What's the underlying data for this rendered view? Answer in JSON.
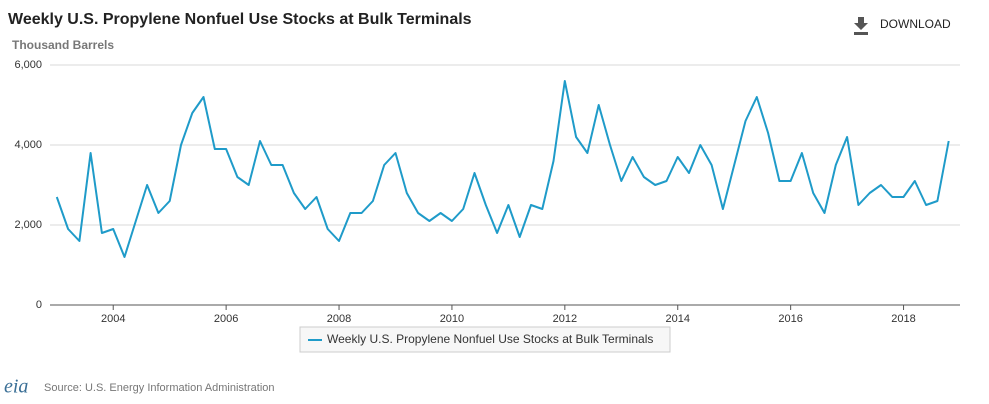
{
  "chart_data": {
    "type": "line",
    "title": "Weekly U.S. Propylene Nonfuel Use Stocks at Bulk Terminals",
    "y_label": "Thousand Barrels",
    "download": "DOWNLOAD",
    "source": "Source: U.S. Energy Information Administration",
    "logo": "eia",
    "x": [
      2003.0,
      2003.2,
      2003.4,
      2003.6,
      2003.8,
      2004.0,
      2004.2,
      2004.4,
      2004.6,
      2004.8,
      2005.0,
      2005.2,
      2005.4,
      2005.6,
      2005.8,
      2006.0,
      2006.2,
      2006.4,
      2006.6,
      2006.8,
      2007.0,
      2007.2,
      2007.4,
      2007.6,
      2007.8,
      2008.0,
      2008.2,
      2008.4,
      2008.6,
      2008.8,
      2009.0,
      2009.2,
      2009.4,
      2009.6,
      2009.8,
      2010.0,
      2010.2,
      2010.4,
      2010.6,
      2010.8,
      2011.0,
      2011.2,
      2011.4,
      2011.6,
      2011.8,
      2012.0,
      2012.2,
      2012.4,
      2012.6,
      2012.8,
      2013.0,
      2013.2,
      2013.4,
      2013.6,
      2013.8,
      2014.0,
      2014.2,
      2014.4,
      2014.6,
      2014.8,
      2015.0,
      2015.2,
      2015.4,
      2015.6,
      2015.8,
      2016.0,
      2016.2,
      2016.4,
      2016.6,
      2016.8,
      2017.0,
      2017.2,
      2017.4,
      2017.6,
      2017.8,
      2018.0,
      2018.2,
      2018.4,
      2018.6,
      2018.8
    ],
    "series": [
      {
        "name": "Weekly U.S. Propylene Nonfuel Use Stocks at Bulk Terminals",
        "color": "#1f9bc9",
        "values": [
          2700,
          1900,
          1600,
          3800,
          1800,
          1900,
          1200,
          2100,
          3000,
          2300,
          2600,
          4000,
          4800,
          5200,
          3900,
          3900,
          3200,
          3000,
          4100,
          3500,
          3500,
          2800,
          2400,
          2700,
          1900,
          1600,
          2300,
          2300,
          2600,
          3500,
          3800,
          2800,
          2300,
          2100,
          2300,
          2100,
          2400,
          3300,
          2500,
          1800,
          2500,
          1700,
          2500,
          2400,
          3600,
          5600,
          4200,
          3800,
          5000,
          4000,
          3100,
          3700,
          3200,
          3000,
          3100,
          3700,
          3300,
          4000,
          3500,
          2400,
          3500,
          4600,
          5200,
          4300,
          3100,
          3100,
          3800,
          2800,
          2300,
          3500,
          4200,
          2500,
          2800,
          3000,
          2700,
          2700,
          3100,
          2500,
          2600,
          4100
        ]
      }
    ],
    "xlim": [
      2002.88,
      2019.0
    ],
    "xticks": [
      2004,
      2006,
      2008,
      2010,
      2012,
      2014,
      2016,
      2018
    ],
    "ylim": [
      0,
      6000
    ],
    "yticks": [
      0,
      {
        "value": 2000,
        "label": "2,000"
      },
      {
        "value": 4000,
        "label": "4,000"
      },
      {
        "value": 6000,
        "label": "6,000"
      }
    ],
    "grid": true
  }
}
